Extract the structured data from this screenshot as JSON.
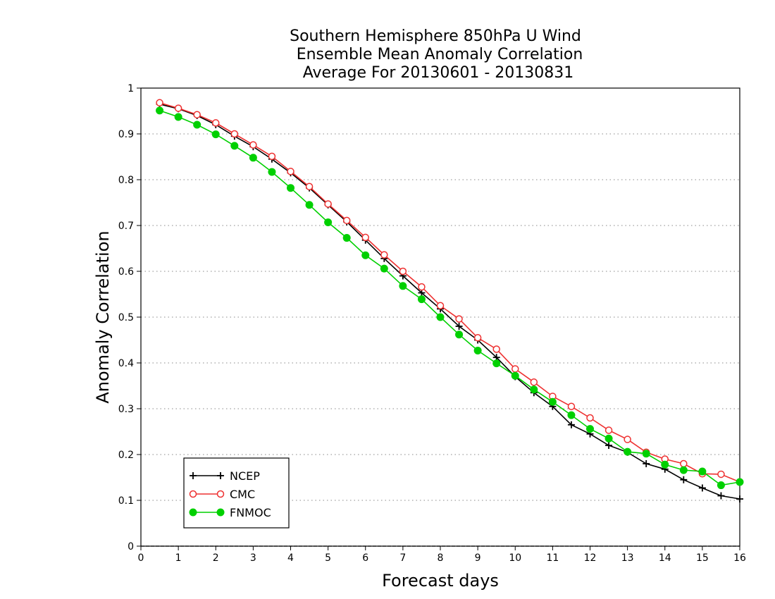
{
  "chart_data": {
    "type": "line",
    "title_lines": [
      "Southern Hemisphere 850hPa U Wind",
      "Ensemble Mean Anomaly Correlation",
      "Average For 20130601 - 20130831"
    ],
    "xlabel": "Forecast days",
    "ylabel": "Anomaly Correlation",
    "xlim": [
      0,
      16
    ],
    "ylim": [
      0,
      1
    ],
    "xticks": [
      "0",
      "1",
      "2",
      "3",
      "4",
      "5",
      "6",
      "7",
      "8",
      "9",
      "10",
      "11",
      "12",
      "13",
      "14",
      "15",
      "16"
    ],
    "yticks": [
      "0",
      "0.1",
      "0.2",
      "0.3",
      "0.4",
      "0.5",
      "0.6",
      "0.7",
      "0.8",
      "0.9",
      "1"
    ],
    "grid": "horizontal dotted",
    "legend_position": "bottom-left",
    "x": [
      0.5,
      1,
      1.5,
      2,
      2.5,
      3,
      3.5,
      4,
      4.5,
      5,
      5.5,
      6,
      6.5,
      7,
      7.5,
      8,
      8.5,
      9,
      9.5,
      10,
      10.5,
      11,
      11.5,
      12,
      12.5,
      13,
      13.5,
      14,
      14.5,
      15,
      15.5,
      16
    ],
    "series": [
      {
        "name": "NCEP",
        "color": "#000000",
        "marker": "plus",
        "values": [
          0.965,
          0.955,
          0.94,
          0.92,
          0.895,
          0.872,
          0.845,
          0.815,
          0.782,
          0.745,
          0.708,
          0.668,
          0.628,
          0.59,
          0.553,
          0.518,
          0.48,
          0.45,
          0.412,
          0.37,
          0.335,
          0.305,
          0.265,
          0.245,
          0.22,
          0.205,
          0.18,
          0.168,
          0.145,
          0.127,
          0.11,
          0.103
        ]
      },
      {
        "name": "CMC",
        "color": "#ee3030",
        "marker": "open-circle",
        "values": [
          0.968,
          0.956,
          0.942,
          0.924,
          0.9,
          0.876,
          0.851,
          0.818,
          0.785,
          0.747,
          0.711,
          0.674,
          0.636,
          0.6,
          0.566,
          0.525,
          0.496,
          0.455,
          0.43,
          0.387,
          0.358,
          0.327,
          0.305,
          0.28,
          0.253,
          0.233,
          0.205,
          0.19,
          0.18,
          0.158,
          0.157,
          0.14
        ]
      },
      {
        "name": "FNMOC",
        "color": "#00d000",
        "marker": "filled-circle",
        "values": [
          0.951,
          0.937,
          0.92,
          0.899,
          0.874,
          0.848,
          0.817,
          0.782,
          0.745,
          0.707,
          0.673,
          0.635,
          0.606,
          0.568,
          0.539,
          0.5,
          0.462,
          0.427,
          0.399,
          0.372,
          0.342,
          0.315,
          0.286,
          0.256,
          0.235,
          0.206,
          0.202,
          0.178,
          0.166,
          0.163,
          0.133,
          0.14
        ]
      }
    ]
  }
}
